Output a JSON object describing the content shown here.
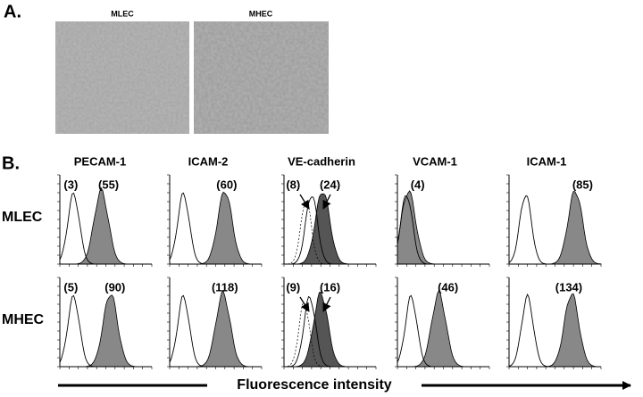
{
  "panel_a": {
    "label": "A.",
    "images": [
      {
        "label": "MLEC"
      },
      {
        "label": "MHEC"
      }
    ]
  },
  "panel_b": {
    "label": "B.",
    "columns": [
      "PECAM-1",
      "ICAM-2",
      "VE-cadherin",
      "VCAM-1",
      "ICAM-1"
    ],
    "rows": [
      {
        "label": "MLEC",
        "annotations": [
          [
            "(3)",
            "(55)"
          ],
          [
            "(60)"
          ],
          [
            "(8)",
            "(24)"
          ],
          [
            "(4)"
          ],
          [
            "(85)"
          ]
        ]
      },
      {
        "label": "MHEC",
        "annotations": [
          [
            "(5)",
            "(90)"
          ],
          [
            "(118)"
          ],
          [
            "(9)",
            "(16)"
          ],
          [
            "(46)"
          ],
          [
            "(134)"
          ]
        ]
      }
    ],
    "x_axis_label": "Fluorescence intensity"
  }
}
